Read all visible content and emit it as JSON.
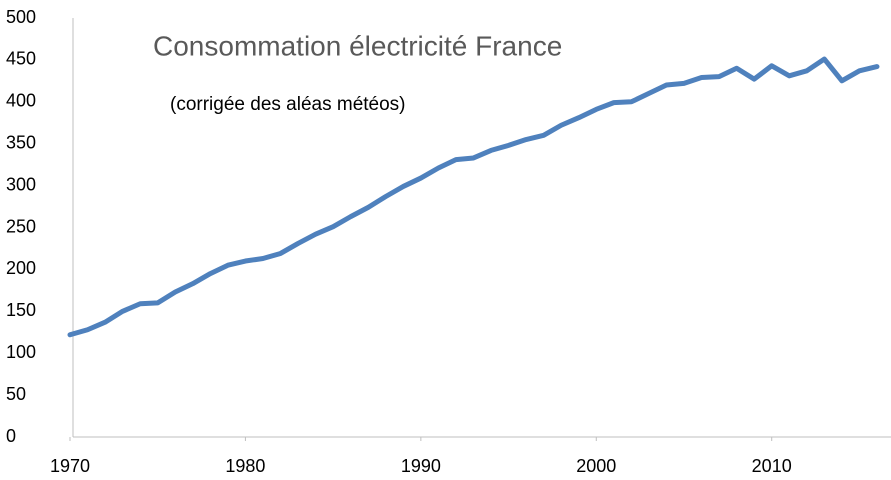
{
  "chart_data": {
    "type": "line",
    "title": "Consommation électricité France",
    "subtitle": "(corrigée des aléas météos)",
    "x": [
      1970,
      1971,
      1972,
      1973,
      1974,
      1975,
      1976,
      1977,
      1978,
      1979,
      1980,
      1981,
      1982,
      1983,
      1984,
      1985,
      1986,
      1987,
      1988,
      1989,
      1990,
      1991,
      1992,
      1993,
      1994,
      1995,
      1996,
      1997,
      1998,
      1999,
      2000,
      2001,
      2002,
      2003,
      2004,
      2005,
      2006,
      2007,
      2008,
      2009,
      2010,
      2011,
      2012,
      2013,
      2014,
      2015,
      2016
    ],
    "series": [
      {
        "name": null,
        "color": "#4f81bd",
        "values": [
          122,
          128,
          137,
          150,
          159,
          160,
          173,
          183,
          195,
          205,
          210,
          213,
          219,
          231,
          242,
          251,
          263,
          274,
          287,
          299,
          309,
          321,
          331,
          333,
          342,
          348,
          355,
          360,
          372,
          381,
          391,
          399,
          400,
          410,
          420,
          422,
          429,
          430,
          440,
          427,
          443,
          431,
          437,
          451,
          425,
          437,
          442
        ]
      }
    ],
    "xlim": [
      1970,
      2016.8
    ],
    "xticks": [
      1970,
      1980,
      1990,
      2000,
      2010
    ],
    "ylim": [
      0,
      500
    ],
    "yticks": [
      0,
      50,
      100,
      150,
      200,
      250,
      300,
      350,
      400,
      450,
      500
    ],
    "grid": false
  }
}
